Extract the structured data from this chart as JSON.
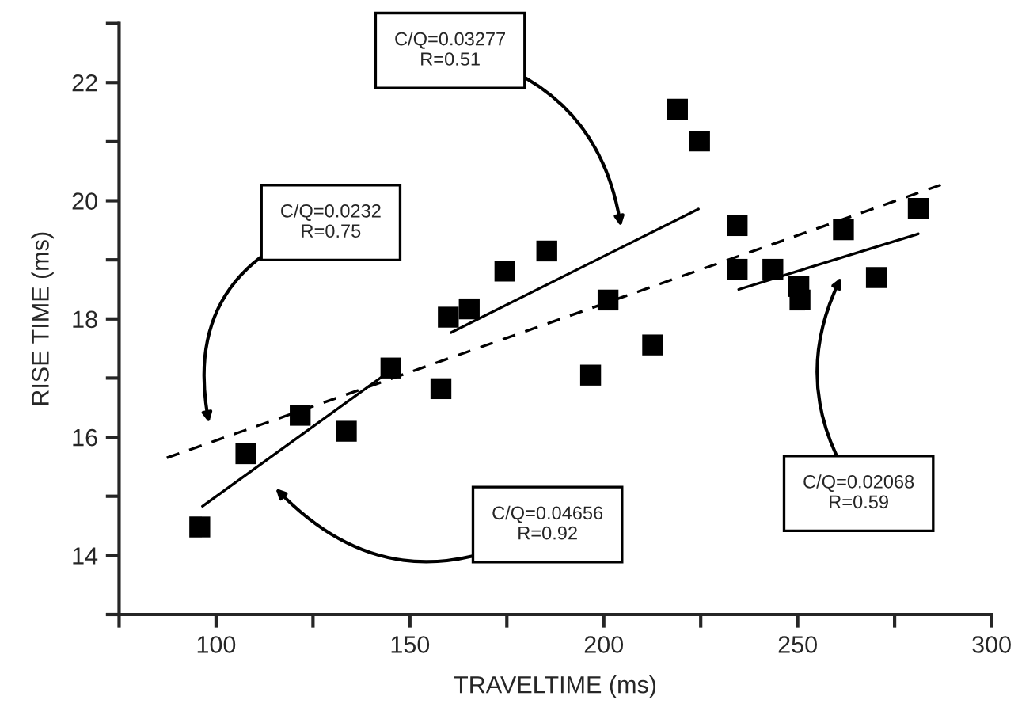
{
  "chart_data": {
    "type": "scatter",
    "xlabel": "TRAVELTIME (ms)",
    "ylabel": "RISE TIME (ms)",
    "xlim": [
      75,
      300
    ],
    "ylim": [
      13,
      23
    ],
    "xticks": [
      {
        "value": 75,
        "label": null
      },
      100,
      {
        "value": 125,
        "label": null
      },
      150,
      {
        "value": 175,
        "label": null
      },
      200,
      {
        "value": 225,
        "label": null
      },
      250,
      {
        "value": 275,
        "label": null
      },
      300
    ],
    "yticks": [
      {
        "value": 13,
        "label": null
      },
      14,
      {
        "value": 15,
        "label": null
      },
      16,
      {
        "value": 17,
        "label": null
      },
      18,
      {
        "value": 19,
        "label": null
      },
      20,
      {
        "value": 21,
        "label": null
      },
      22,
      {
        "value": 23,
        "label": null
      }
    ],
    "grid": false,
    "legend": false,
    "series": [
      {
        "marker": "square",
        "color": "#000000",
        "x": [
          95.8,
          107.7,
          121.7,
          133.6,
          145.1,
          158.0,
          159.9,
          165.3,
          174.5,
          185.3,
          201.1,
          196.6,
          212.6,
          219.0,
          224.7,
          234.4,
          234.4,
          243.6,
          250.3,
          250.6,
          261.8,
          270.3,
          281.1
        ],
        "values": [
          14.48,
          15.72,
          16.37,
          16.1,
          17.17,
          16.82,
          18.03,
          18.17,
          18.81,
          19.15,
          18.32,
          17.05,
          17.56,
          21.55,
          21.01,
          19.58,
          18.84,
          18.84,
          18.55,
          18.32,
          19.51,
          18.7,
          19.87
        ]
      },
      {
        "type": "line",
        "line_style": "dashed",
        "color": "#000000",
        "x": [
          87.3,
          287.4
        ],
        "values": [
          15.65,
          20.28
        ]
      },
      {
        "type": "line",
        "line_style": "solid",
        "color": "#000000",
        "x": [
          96.5,
          145.7
        ],
        "values": [
          14.83,
          17.16
        ]
      },
      {
        "type": "line",
        "line_style": "solid",
        "color": "#000000",
        "x": [
          160.6,
          224.4
        ],
        "values": [
          17.77,
          19.86
        ]
      },
      {
        "type": "line",
        "line_style": "solid",
        "color": "#000000",
        "x": [
          234.8,
          281.1
        ],
        "values": [
          18.5,
          19.44
        ]
      }
    ],
    "annotations": [
      "C/Q=0.03277\nR=0.51",
      "C/Q=0.0232\nR=0.75",
      "C/Q=0.04656\nR=0.92",
      "C/Q=0.02068\nR=0.59"
    ]
  }
}
